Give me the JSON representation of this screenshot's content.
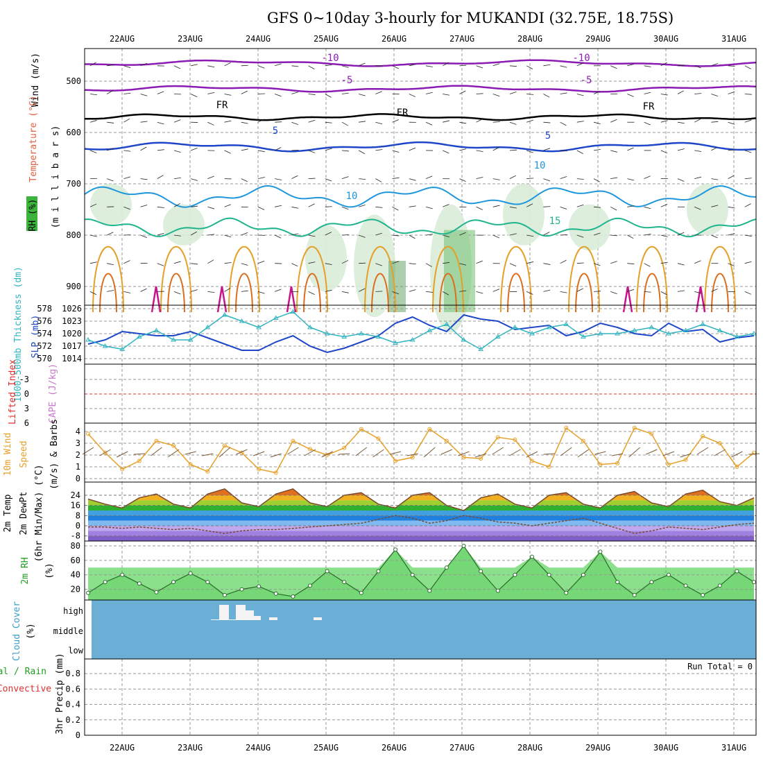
{
  "title": "GFS 0~10day 3-hourly for MUKANDI (32.75E, 18.75S)",
  "dates": [
    "22AUG",
    "23AUG",
    "24AUG",
    "25AUG",
    "26AUG",
    "27AUG",
    "28AUG",
    "29AUG",
    "30AUG",
    "31AUG"
  ],
  "colors": {
    "purple": "#8c1ab4",
    "black": "#000000",
    "blue": "#1e46c8",
    "lightblue": "#1e96dc",
    "teal": "#1eb48c",
    "orange": "#e6a028",
    "darkorange": "#dc6e1e",
    "magenta": "#c8148c",
    "rhgreen": "#5a9e5a",
    "cloud": "#6baed6",
    "precip_red": "#e03030",
    "cape_purple": "#c878c8"
  },
  "panels": {
    "upper": {
      "ylabels": [
        "Wind (m/s)",
        "Temperature (°C)",
        "RH (%)",
        "(m i l l i b a r s)"
      ],
      "yticks": [
        500,
        600,
        700,
        800,
        900
      ],
      "contour_labels": [
        "-10",
        "-5",
        "FR",
        "5",
        "10",
        "15"
      ]
    },
    "slp": {
      "ylabel_left": "1000-500mb Thickness (dm)",
      "ylabel_right": "SLP (mb)",
      "ticks_thickness": [
        578,
        576,
        574,
        572,
        570
      ],
      "ticks_slp": [
        1026,
        1023,
        1020,
        1017,
        1014
      ]
    },
    "li": {
      "ylabel_left": "Lifted Index",
      "ylabel_right": "CAPE (J/kg)",
      "ticks": [
        "-3",
        "0",
        "3",
        "6"
      ],
      "cape_ticks": [
        "-6"
      ]
    },
    "wind": {
      "ylabel": [
        "10m Wind",
        "Speed",
        "(m/s) & Barbs"
      ],
      "ticks": [
        0,
        1,
        2,
        3,
        4
      ]
    },
    "temp": {
      "ylabel": [
        "2m Temp",
        "2m DewPt",
        "(6hr Min/Max) (°C)"
      ],
      "ticks": [
        24,
        16,
        8,
        0,
        -8
      ]
    },
    "rh": {
      "ylabel": [
        "2m RH",
        "(%)"
      ],
      "ticks": [
        80,
        60,
        40,
        20
      ]
    },
    "cloud": {
      "ylabel": [
        "Cloud Cover",
        "(%)"
      ],
      "levels": [
        "high",
        "middle",
        "low"
      ]
    },
    "precip": {
      "ylabel": [
        "Total / Rain",
        "Convective",
        "3hr Precip (mm)"
      ],
      "ticks": [
        "0.8",
        "0.6",
        "0.4",
        "0.2",
        "0"
      ],
      "run_total": "Run Total = 0"
    }
  },
  "chart_data": [
    {
      "type": "line",
      "name": "SLP (mb)",
      "x": [
        "21AUG12",
        "21AUG18",
        "22AUG00",
        "22AUG06",
        "22AUG12",
        "22AUG18",
        "23AUG00",
        "23AUG06",
        "23AUG12",
        "23AUG18",
        "24AUG00",
        "24AUG06",
        "24AUG12",
        "24AUG18",
        "25AUG00",
        "25AUG06",
        "25AUG12",
        "25AUG18",
        "26AUG00",
        "26AUG06",
        "26AUG12",
        "26AUG18",
        "27AUG00",
        "27AUG06",
        "27AUG12",
        "27AUG18",
        "28AUG00",
        "28AUG06",
        "28AUG12",
        "28AUG18",
        "29AUG00",
        "29AUG06",
        "29AUG12",
        "29AUG18",
        "30AUG00",
        "30AUG06",
        "30AUG12",
        "30AUG18",
        "31AUG00",
        "31AUG06"
      ],
      "values": [
        1017.5,
        1018.5,
        1020.5,
        1020.0,
        1019.5,
        1019.5,
        1020.5,
        1019.0,
        1017.5,
        1016.0,
        1016.0,
        1018.0,
        1019.5,
        1017.0,
        1015.5,
        1016.5,
        1018.0,
        1019.5,
        1022.5,
        1024.0,
        1022.0,
        1020.5,
        1024.5,
        1023.5,
        1023.0,
        1021.0,
        1021.5,
        1022.0,
        1019.5,
        1020.5,
        1022.5,
        1021.5,
        1020.0,
        1019.5,
        1022.5,
        1020.5,
        1021.0,
        1018.0,
        1019.0,
        1019.5
      ]
    },
    {
      "type": "line",
      "name": "Thickness (dm)",
      "x": [
        "21AUG12",
        "21AUG18",
        "22AUG00",
        "22AUG06",
        "22AUG12",
        "22AUG18",
        "23AUG00",
        "23AUG06",
        "23AUG12",
        "23AUG18",
        "24AUG00",
        "24AUG06",
        "24AUG12",
        "24AUG18",
        "25AUG00",
        "25AUG06",
        "25AUG12",
        "25AUG18",
        "26AUG00",
        "26AUG06",
        "26AUG12",
        "26AUG18",
        "27AUG00",
        "27AUG06",
        "27AUG12",
        "27AUG18",
        "28AUG00",
        "28AUG06",
        "28AUG12",
        "28AUG18",
        "29AUG00",
        "29AUG06",
        "29AUG12",
        "29AUG18",
        "30AUG00",
        "30AUG06",
        "30AUG12",
        "30AUG18",
        "31AUG00",
        "31AUG06"
      ],
      "values": [
        573.0,
        572.0,
        571.5,
        573.5,
        574.5,
        573.0,
        573.0,
        575.0,
        577.0,
        576.0,
        575.0,
        576.5,
        577.5,
        575.0,
        574.0,
        573.5,
        574.0,
        573.5,
        572.5,
        573.0,
        574.5,
        575.5,
        573.0,
        571.5,
        573.5,
        575.0,
        574.0,
        575.0,
        575.5,
        573.5,
        574.0,
        574.0,
        574.5,
        575.0,
        574.0,
        574.5,
        575.5,
        574.5,
        573.5,
        574.0
      ]
    },
    {
      "type": "line",
      "name": "10m Wind Speed (m/s)",
      "x": [
        "21AUG12",
        "21AUG18",
        "22AUG00",
        "22AUG06",
        "22AUG12",
        "22AUG18",
        "23AUG00",
        "23AUG06",
        "23AUG12",
        "23AUG18",
        "24AUG00",
        "24AUG06",
        "24AUG12",
        "24AUG18",
        "25AUG00",
        "25AUG06",
        "25AUG12",
        "25AUG18",
        "26AUG00",
        "26AUG06",
        "26AUG12",
        "26AUG18",
        "27AUG00",
        "27AUG06",
        "27AUG12",
        "27AUG18",
        "28AUG00",
        "28AUG06",
        "28AUG12",
        "28AUG18",
        "29AUG00",
        "29AUG06",
        "29AUG12",
        "29AUG18",
        "30AUG00",
        "30AUG06",
        "30AUG12",
        "30AUG18",
        "31AUG00",
        "31AUG06"
      ],
      "values": [
        3.8,
        2.2,
        0.8,
        1.5,
        3.2,
        2.8,
        1.2,
        0.6,
        2.8,
        2.2,
        0.8,
        0.5,
        3.2,
        2.5,
        2.0,
        2.6,
        4.2,
        3.4,
        1.5,
        1.8,
        4.2,
        3.2,
        1.8,
        1.7,
        3.5,
        3.3,
        1.5,
        1.0,
        4.3,
        3.2,
        1.2,
        1.3,
        4.3,
        3.8,
        1.2,
        1.6,
        3.6,
        3.0,
        1.0,
        2.2
      ]
    },
    {
      "type": "line",
      "name": "2m Temp (°C)",
      "x": [
        "21AUG12",
        "21AUG18",
        "22AUG00",
        "22AUG06",
        "22AUG12",
        "22AUG18",
        "23AUG00",
        "23AUG06",
        "23AUG12",
        "23AUG18",
        "24AUG00",
        "24AUG06",
        "24AUG12",
        "24AUG18",
        "25AUG00",
        "25AUG06",
        "25AUG12",
        "25AUG18",
        "26AUG00",
        "26AUG06",
        "26AUG12",
        "26AUG18",
        "27AUG00",
        "27AUG06",
        "27AUG12",
        "27AUG18",
        "28AUG00",
        "28AUG06",
        "28AUG12",
        "28AUG18",
        "29AUG00",
        "29AUG06",
        "29AUG12",
        "29AUG18",
        "30AUG00",
        "30AUG06",
        "30AUG12",
        "30AUG18",
        "31AUG00",
        "31AUG06"
      ],
      "values": [
        21,
        17,
        14,
        22,
        25,
        17,
        14,
        25,
        29,
        18,
        15,
        25,
        29,
        18,
        15,
        24,
        26,
        17,
        14,
        24,
        26,
        16,
        12,
        22,
        25,
        17,
        14,
        24,
        26,
        17,
        14,
        24,
        27,
        18,
        15,
        25,
        28,
        19,
        16,
        22
      ]
    },
    {
      "type": "line",
      "name": "2m DewPt (°C)",
      "x": [
        "21AUG12",
        "21AUG18",
        "22AUG00",
        "22AUG06",
        "22AUG12",
        "22AUG18",
        "23AUG00",
        "23AUG06",
        "23AUG12",
        "23AUG18",
        "24AUG00",
        "24AUG06",
        "24AUG12",
        "24AUG18",
        "25AUG00",
        "25AUG06",
        "25AUG12",
        "25AUG18",
        "26AUG00",
        "26AUG06",
        "26AUG12",
        "26AUG18",
        "27AUG00",
        "27AUG06",
        "27AUG12",
        "27AUG18",
        "28AUG00",
        "28AUG06",
        "28AUG12",
        "28AUG18",
        "29AUG00",
        "29AUG06",
        "29AUG12",
        "29AUG18",
        "30AUG00",
        "30AUG06",
        "30AUG12",
        "30AUG18",
        "31AUG00",
        "31AUG06"
      ],
      "values": [
        -1,
        -1,
        -2,
        -1,
        -2,
        -3,
        -2,
        -4,
        -6,
        -4,
        -3,
        -3,
        -2,
        -1,
        0,
        1,
        2,
        5,
        8,
        6,
        2,
        4,
        8,
        6,
        3,
        2,
        0,
        2,
        4,
        6,
        2,
        -2,
        -6,
        -4,
        -1,
        -2,
        -3,
        -1,
        1,
        2
      ]
    },
    {
      "type": "area",
      "name": "2m RH (%)",
      "x": [
        "21AUG12",
        "21AUG18",
        "22AUG00",
        "22AUG06",
        "22AUG12",
        "22AUG18",
        "23AUG00",
        "23AUG06",
        "23AUG12",
        "23AUG18",
        "24AUG00",
        "24AUG06",
        "24AUG12",
        "24AUG18",
        "25AUG00",
        "25AUG06",
        "25AUG12",
        "25AUG18",
        "26AUG00",
        "26AUG06",
        "26AUG12",
        "26AUG18",
        "27AUG00",
        "27AUG06",
        "27AUG12",
        "27AUG18",
        "28AUG00",
        "28AUG06",
        "28AUG12",
        "28AUG18",
        "29AUG00",
        "29AUG06",
        "29AUG12",
        "29AUG18",
        "30AUG00",
        "30AUG06",
        "30AUG12",
        "30AUG18",
        "31AUG00",
        "31AUG06"
      ],
      "values": [
        15,
        30,
        40,
        28,
        16,
        30,
        42,
        30,
        12,
        20,
        24,
        14,
        10,
        25,
        45,
        30,
        15,
        45,
        75,
        40,
        18,
        50,
        80,
        45,
        18,
        40,
        65,
        40,
        15,
        40,
        72,
        30,
        12,
        30,
        40,
        25,
        12,
        25,
        45,
        30
      ]
    },
    {
      "type": "bar",
      "name": "High Cloud Cover (%)",
      "x": [
        "23AUG12",
        "23AUG15",
        "23AUG18",
        "23AUG21",
        "24AUG00",
        "24AUG06",
        "24AUG12"
      ],
      "values": [
        100,
        100,
        100,
        100,
        60,
        20,
        20
      ]
    },
    {
      "type": "bar",
      "name": "3hr Precip (mm)",
      "x": [
        "21AUG12",
        "31AUG06"
      ],
      "values": [
        0,
        0
      ]
    }
  ]
}
